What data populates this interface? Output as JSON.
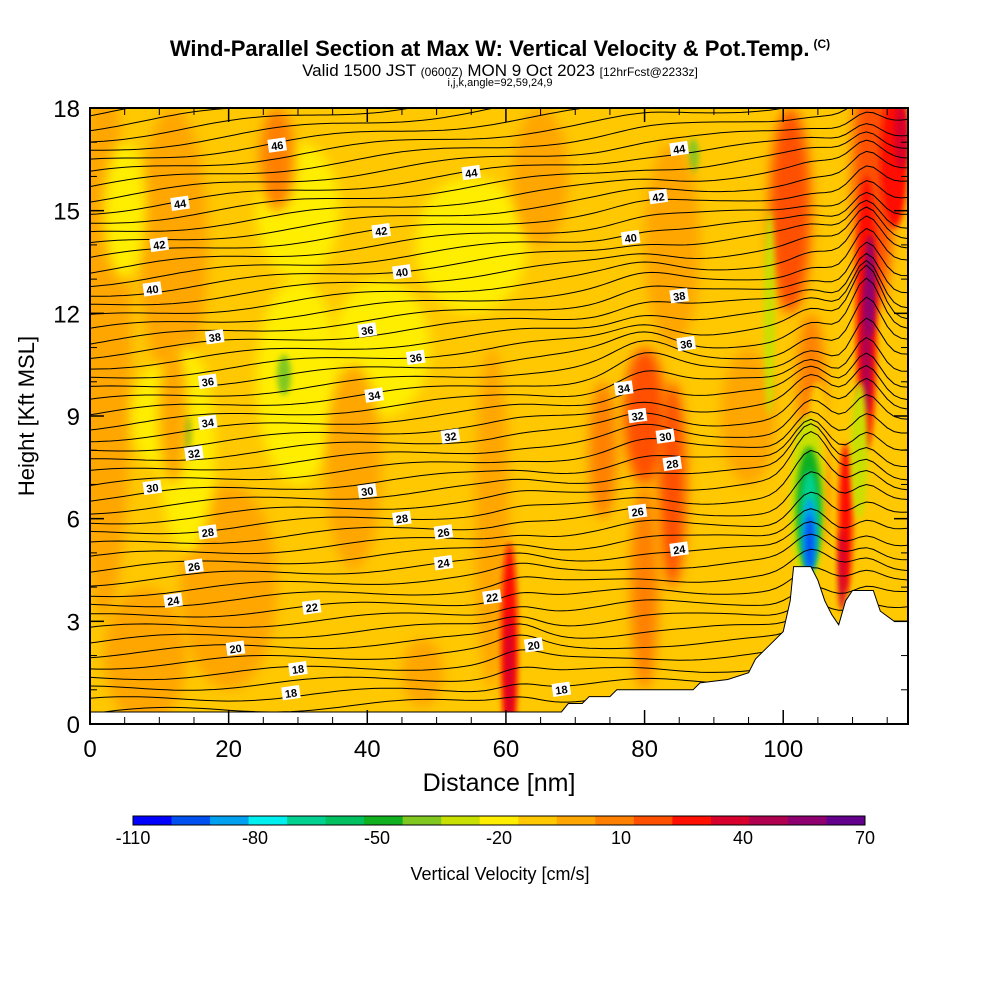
{
  "title": {
    "main": "Wind-Parallel Section at Max W: Vertical Velocity & Pot.Temp.",
    "copyright": "(C)",
    "valid_prefix": "Valid 1500 JST",
    "valid_utc": "(0600Z)",
    "valid_date": "MON 9 Oct 2023",
    "forecast": "[12hrFcst@2233z]",
    "indices": "i,j,k,angle=92,59,24,9"
  },
  "chart_data": {
    "type": "heatmap",
    "xlabel": "Distance [nm]",
    "ylabel": "Height [Kft MSL]",
    "xlim": [
      0,
      118
    ],
    "ylim": [
      0,
      18
    ],
    "x_ticks": [
      0,
      20,
      40,
      60,
      80,
      100
    ],
    "y_ticks": [
      0,
      3,
      6,
      9,
      12,
      15,
      18
    ],
    "colorbar": {
      "label": "Vertical Velocity [cm/s]",
      "tick_labels": [
        "-110",
        "-80",
        "-50",
        "-20",
        "10",
        "40",
        "70"
      ],
      "levels": [
        -110,
        -100,
        -90,
        -80,
        -70,
        -60,
        -50,
        -40,
        -30,
        -20,
        -10,
        0,
        10,
        20,
        30,
        40,
        50,
        60,
        70
      ],
      "colors": [
        "#0000ff",
        "#0050f0",
        "#00a0f0",
        "#00f0f0",
        "#00d090",
        "#00c060",
        "#10b020",
        "#80c820",
        "#c8e000",
        "#ffee00",
        "#ffc800",
        "#ffa600",
        "#ff8000",
        "#ff5000",
        "#ff1000",
        "#d8002c",
        "#b00050",
        "#8e0070",
        "#62008c"
      ]
    },
    "theta_contour_labels": [
      {
        "x": 27,
        "y": 16.9,
        "v": "46"
      },
      {
        "x": 55,
        "y": 16.1,
        "v": "44"
      },
      {
        "x": 85,
        "y": 16.8,
        "v": "44"
      },
      {
        "x": 13,
        "y": 15.2,
        "v": "44"
      },
      {
        "x": 82,
        "y": 15.4,
        "v": "42"
      },
      {
        "x": 42,
        "y": 14.4,
        "v": "42"
      },
      {
        "x": 10,
        "y": 14.0,
        "v": "42"
      },
      {
        "x": 78,
        "y": 14.2,
        "v": "40"
      },
      {
        "x": 45,
        "y": 13.2,
        "v": "40"
      },
      {
        "x": 9,
        "y": 12.7,
        "v": "40"
      },
      {
        "x": 85,
        "y": 12.5,
        "v": "38"
      },
      {
        "x": 18,
        "y": 11.3,
        "v": "38"
      },
      {
        "x": 40,
        "y": 11.5,
        "v": "36"
      },
      {
        "x": 86,
        "y": 11.1,
        "v": "36"
      },
      {
        "x": 47,
        "y": 10.7,
        "v": "36"
      },
      {
        "x": 17,
        "y": 10.0,
        "v": "36"
      },
      {
        "x": 77,
        "y": 9.8,
        "v": "34"
      },
      {
        "x": 41,
        "y": 9.6,
        "v": "34"
      },
      {
        "x": 17,
        "y": 8.8,
        "v": "34"
      },
      {
        "x": 79,
        "y": 9.0,
        "v": "32"
      },
      {
        "x": 52,
        "y": 8.4,
        "v": "32"
      },
      {
        "x": 15,
        "y": 7.9,
        "v": "32"
      },
      {
        "x": 83,
        "y": 8.4,
        "v": "30"
      },
      {
        "x": 40,
        "y": 6.8,
        "v": "30"
      },
      {
        "x": 9,
        "y": 6.9,
        "v": "30"
      },
      {
        "x": 84,
        "y": 7.6,
        "v": "28"
      },
      {
        "x": 45,
        "y": 6.0,
        "v": "28"
      },
      {
        "x": 17,
        "y": 5.6,
        "v": "28"
      },
      {
        "x": 79,
        "y": 6.2,
        "v": "26"
      },
      {
        "x": 51,
        "y": 5.6,
        "v": "26"
      },
      {
        "x": 15,
        "y": 4.6,
        "v": "26"
      },
      {
        "x": 85,
        "y": 5.1,
        "v": "24"
      },
      {
        "x": 51,
        "y": 4.7,
        "v": "24"
      },
      {
        "x": 12,
        "y": 3.6,
        "v": "24"
      },
      {
        "x": 58,
        "y": 3.7,
        "v": "22"
      },
      {
        "x": 32,
        "y": 3.4,
        "v": "22"
      },
      {
        "x": 64,
        "y": 2.3,
        "v": "20"
      },
      {
        "x": 21,
        "y": 2.2,
        "v": "20"
      },
      {
        "x": 30,
        "y": 1.6,
        "v": "18"
      },
      {
        "x": 29,
        "y": 0.9,
        "v": "18"
      },
      {
        "x": 68,
        "y": 1.0,
        "v": "18"
      }
    ],
    "terrain": [
      [
        0,
        0.35
      ],
      [
        68,
        0.35
      ],
      [
        69,
        0.6
      ],
      [
        71,
        0.6
      ],
      [
        72,
        0.8
      ],
      [
        75,
        0.8
      ],
      [
        76,
        1.0
      ],
      [
        87,
        1.0
      ],
      [
        88,
        1.2
      ],
      [
        92,
        1.3
      ],
      [
        95,
        1.5
      ],
      [
        96,
        1.9
      ],
      [
        98,
        2.3
      ],
      [
        100,
        2.7
      ],
      [
        101,
        3.6
      ],
      [
        101.5,
        4.6
      ],
      [
        104,
        4.6
      ],
      [
        105,
        4.2
      ],
      [
        106,
        3.6
      ],
      [
        107,
        3.2
      ],
      [
        108,
        2.9
      ],
      [
        109,
        3.6
      ],
      [
        110,
        3.9
      ],
      [
        113,
        3.9
      ],
      [
        114,
        3.3
      ],
      [
        116,
        3.0
      ],
      [
        118,
        3.0
      ]
    ]
  }
}
